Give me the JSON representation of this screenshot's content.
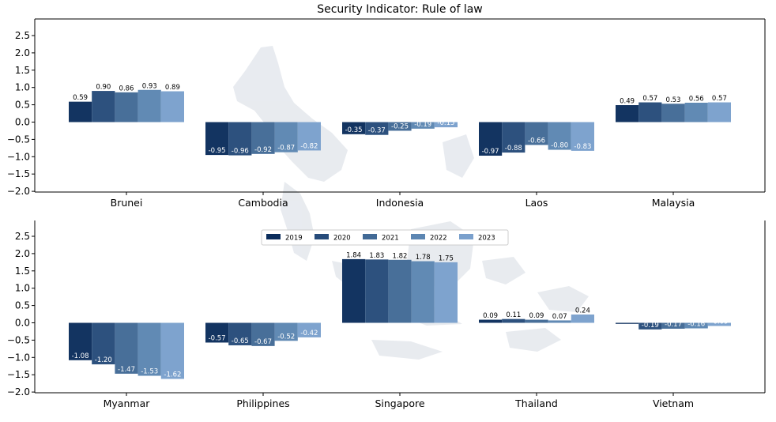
{
  "chart_data": {
    "type": "bar",
    "title": "Security Indicator: Rule of law",
    "years": [
      "2019",
      "2020",
      "2021",
      "2022",
      "2023"
    ],
    "colors": [
      "#0b2d5c",
      "#264b7a",
      "#426a96",
      "#5c86b2",
      "#7aa0cc"
    ],
    "ylim": [
      -2.0,
      2.75
    ],
    "yticks": [
      "2.5",
      "2.0",
      "1.5",
      "1.0",
      "0.5",
      "0.0",
      "−0.5",
      "−1.0",
      "−1.5",
      "−2.0"
    ],
    "ytick_values": [
      2.5,
      2.0,
      1.5,
      1.0,
      0.5,
      0.0,
      -0.5,
      -1.0,
      -1.5,
      -2.0
    ],
    "legend_position": "upper center of bottom panel",
    "background": "faint map of Southeast Asia",
    "panels": [
      {
        "countries": [
          {
            "name": "Brunei",
            "values": [
              0.59,
              0.9,
              0.86,
              0.93,
              0.89
            ],
            "labels": [
              "0.59",
              "0.90",
              "0.86",
              "0.93",
              "0.89"
            ]
          },
          {
            "name": "Cambodia",
            "values": [
              -0.95,
              -0.96,
              -0.92,
              -0.87,
              -0.82
            ],
            "labels": [
              "-0.95",
              "-0.96",
              "-0.92",
              "-0.87",
              "-0.82"
            ]
          },
          {
            "name": "Indonesia",
            "values": [
              -0.35,
              -0.37,
              -0.25,
              -0.19,
              -0.15
            ],
            "labels": [
              "-0.35",
              "-0.37",
              "-0.25",
              "-0.19",
              "-0.15"
            ]
          },
          {
            "name": "Laos",
            "values": [
              -0.97,
              -0.88,
              -0.66,
              -0.8,
              -0.83
            ],
            "labels": [
              "-0.97",
              "-0.88",
              "-0.66",
              "-0.80",
              "-0.83"
            ]
          },
          {
            "name": "Malaysia",
            "values": [
              0.49,
              0.57,
              0.53,
              0.56,
              0.57
            ],
            "labels": [
              "0.49",
              "0.57",
              "0.53",
              "0.56",
              "0.57"
            ]
          }
        ]
      },
      {
        "countries": [
          {
            "name": "Myanmar",
            "values": [
              -1.08,
              -1.2,
              -1.47,
              -1.53,
              -1.62
            ],
            "labels": [
              "-1.08",
              "-1.20",
              "-1.47",
              "-1.53",
              "-1.62"
            ]
          },
          {
            "name": "Philippines",
            "values": [
              -0.57,
              -0.65,
              -0.67,
              -0.52,
              -0.42
            ],
            "labels": [
              "-0.57",
              "-0.65",
              "-0.67",
              "-0.52",
              "-0.42"
            ]
          },
          {
            "name": "Singapore",
            "values": [
              1.84,
              1.83,
              1.82,
              1.78,
              1.75
            ],
            "labels": [
              "1.84",
              "1.83",
              "1.82",
              "1.78",
              "1.75"
            ]
          },
          {
            "name": "Thailand",
            "values": [
              0.09,
              0.11,
              0.09,
              0.07,
              0.24
            ],
            "labels": [
              "0.09",
              "0.11",
              "0.09",
              "0.07",
              "0.24"
            ]
          },
          {
            "name": "Vietnam",
            "values": [
              -0.03,
              -0.19,
              -0.17,
              -0.16,
              -0.09
            ],
            "labels": [
              "-0.03",
              "-0.19",
              "-0.17",
              "-0.16",
              "-0.09"
            ]
          }
        ]
      }
    ]
  }
}
